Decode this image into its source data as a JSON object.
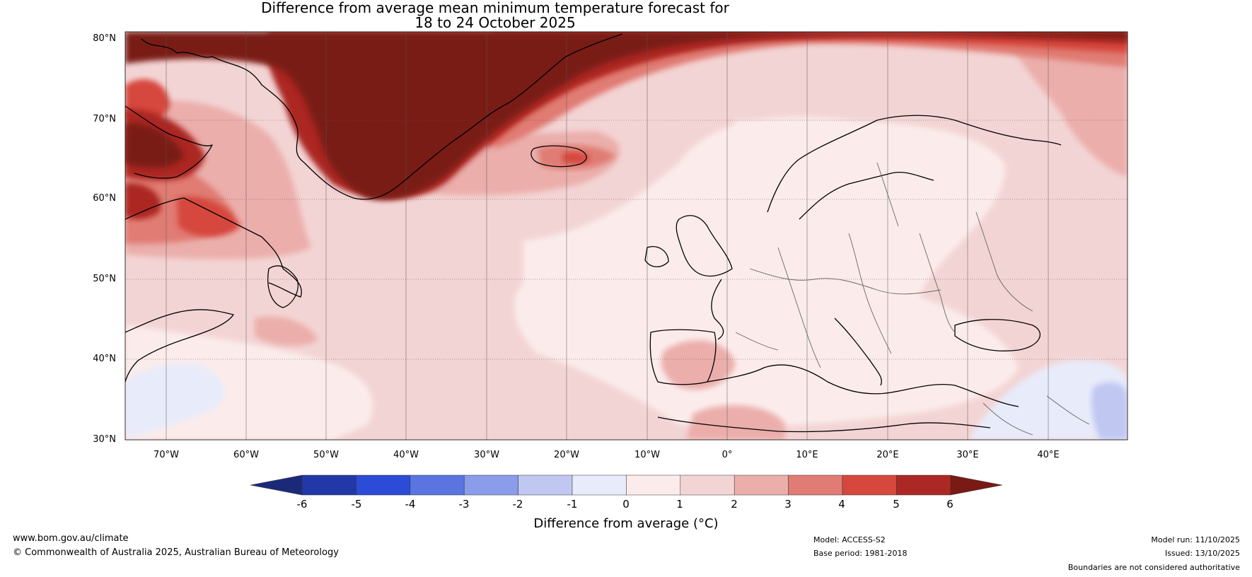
{
  "title": {
    "line1": "Difference from average mean minimum temperature forecast for",
    "line2": "18 to 24 October 2025"
  },
  "map": {
    "lat_labels": [
      "80°N",
      "70°N",
      "60°N",
      "50°N",
      "40°N",
      "30°N"
    ],
    "lon_labels": [
      "70°W",
      "60°W",
      "50°W",
      "40°W",
      "30°W",
      "20°W",
      "10°W",
      "0°",
      "10°E",
      "20°E",
      "30°E",
      "40°E"
    ],
    "lat_range": [
      30,
      80
    ],
    "lon_range": [
      -75,
      50
    ]
  },
  "legend": {
    "ticks": [
      "-6",
      "-5",
      "-4",
      "-3",
      "-2",
      "-1",
      "0",
      "1",
      "2",
      "3",
      "4",
      "5",
      "6"
    ],
    "bins": [
      {
        "range": "< -6",
        "color": "#1b2a78"
      },
      {
        "range": "-6 to -5",
        "color": "#2238a8"
      },
      {
        "range": "-5 to -4",
        "color": "#2c4bd6"
      },
      {
        "range": "-4 to -3",
        "color": "#5a74e0"
      },
      {
        "range": "-3 to -2",
        "color": "#8a9cea"
      },
      {
        "range": "-2 to -1",
        "color": "#c0c8f2"
      },
      {
        "range": "-1 to 0",
        "color": "#e8ebfa"
      },
      {
        "range": "0 to 1",
        "color": "#fbeceb"
      },
      {
        "range": "1 to 2",
        "color": "#f3d4d4"
      },
      {
        "range": "2 to 3",
        "color": "#ebaeab"
      },
      {
        "range": "3 to 4",
        "color": "#e07c73"
      },
      {
        "range": "4 to 5",
        "color": "#d6473d"
      },
      {
        "range": "5 to 6",
        "color": "#ac2824"
      },
      {
        "range": "> 6",
        "color": "#7a1a15"
      }
    ],
    "title": "Difference from average (°C)"
  },
  "footer": {
    "website": "www.bom.gov.au/climate",
    "copyright": "© Commonwealth of Australia 2025, Australian Bureau of Meteorology",
    "model": "Model: ACCESS-S2",
    "base_period": "Base period: 1981-2018",
    "model_run": "Model run: 11/10/2025",
    "issued": "Issued: 13/10/2025",
    "disclaimer": "Boundaries are not considered authoritative"
  }
}
